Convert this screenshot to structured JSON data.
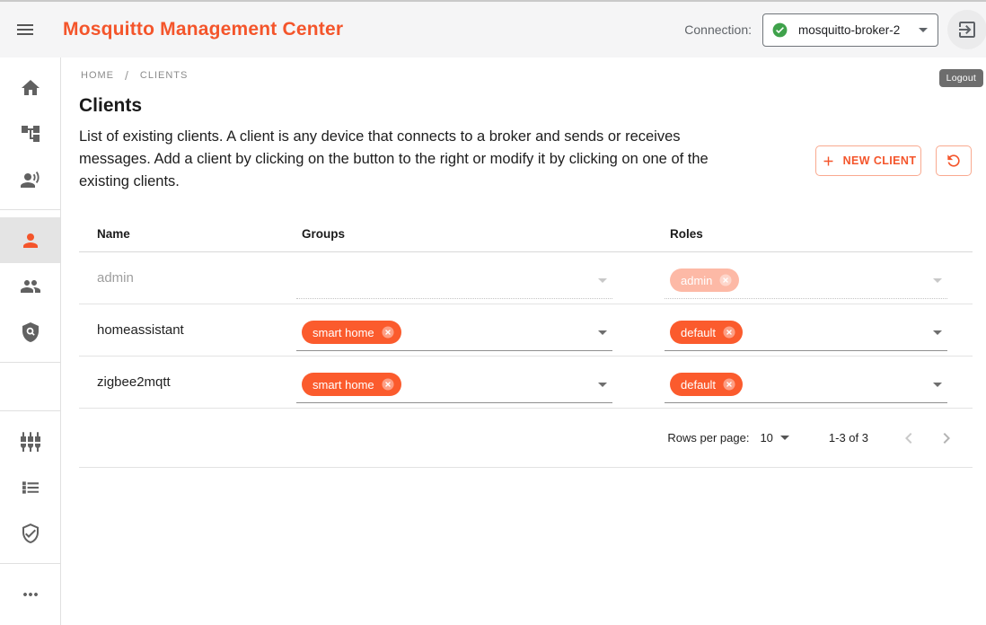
{
  "header": {
    "app_title": "Mosquitto Management Center",
    "connection_label": "Connection:",
    "connection_name": "mosquitto-broker-2",
    "connection_status_icon": "check-circle-icon",
    "logout_icon": "logout-icon",
    "logout_tooltip": "Logout"
  },
  "sidebar": {
    "groups": [
      {
        "items": [
          {
            "name": "home",
            "icon": "home-icon",
            "selected": false
          },
          {
            "name": "topic-tree",
            "icon": "topic-tree-icon",
            "selected": false
          },
          {
            "name": "voice-person",
            "icon": "voice-person-icon",
            "selected": false
          }
        ]
      },
      {
        "items": [
          {
            "name": "clients",
            "icon": "person-icon",
            "selected": true
          },
          {
            "name": "groups",
            "icon": "people-icon",
            "selected": false
          },
          {
            "name": "policy",
            "icon": "policy-shield-icon",
            "selected": false
          }
        ]
      },
      {
        "items": []
      },
      {
        "items": [
          {
            "name": "plugins",
            "icon": "plugs-icon",
            "selected": false
          },
          {
            "name": "list",
            "icon": "list-icon",
            "selected": false
          },
          {
            "name": "shield-check",
            "icon": "shield-check-icon",
            "selected": false
          }
        ]
      },
      {
        "items": [
          {
            "name": "more",
            "icon": "more-horiz-icon",
            "selected": false
          }
        ]
      }
    ]
  },
  "breadcrumb": {
    "items": [
      "HOME",
      "CLIENTS"
    ],
    "separator": "/"
  },
  "page": {
    "title": "Clients",
    "description": "List of existing clients. A client is any device that connects to a broker and sends or receives messages. Add a client by clicking on the button to the right or modify it by clicking on one of the existing clients.",
    "actions": {
      "new_client": "NEW CLIENT",
      "refresh_icon": "refresh-icon",
      "plus_icon": "plus-icon"
    }
  },
  "table": {
    "columns": [
      "Name",
      "Groups",
      "Roles"
    ],
    "rows": [
      {
        "name": "admin",
        "groups": [],
        "roles": [
          "admin"
        ],
        "disabled": true
      },
      {
        "name": "homeassistant",
        "groups": [
          "smart home"
        ],
        "roles": [
          "default"
        ],
        "disabled": false
      },
      {
        "name": "zigbee2mqtt",
        "groups": [
          "smart home"
        ],
        "roles": [
          "default"
        ],
        "disabled": false
      }
    ]
  },
  "pagination": {
    "rows_per_page_label": "Rows per page:",
    "rows_per_page_value": "10",
    "range_label": "1-3 of 3"
  },
  "colors": {
    "brand_orange": "#f4552b",
    "chip_orange": "#fb5b2d",
    "status_green": "#3fa24b",
    "header_bg": "#f5f5f6",
    "tooltip_bg": "#616161",
    "icon_gray": "#616161",
    "divider": "#e0e0e0",
    "selected_nav_bg": "#e4e4e4"
  }
}
